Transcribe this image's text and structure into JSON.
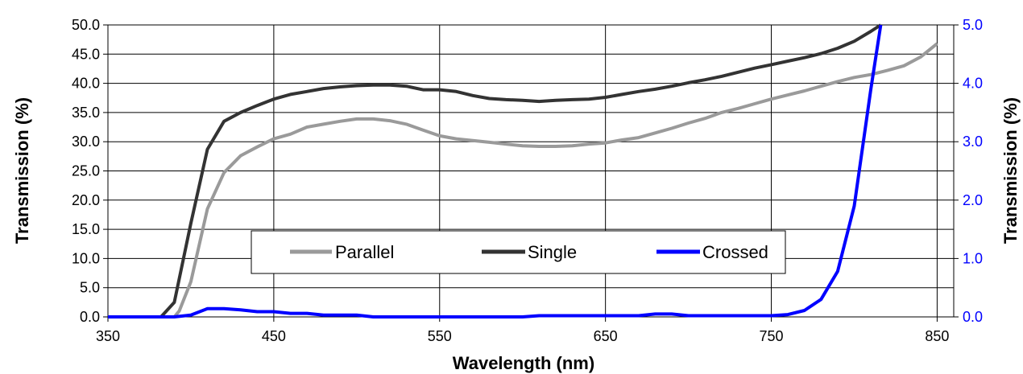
{
  "chart_data": {
    "type": "line",
    "xlabel": "Wavelength (nm)",
    "ylabel_left": "Transmission (%)",
    "ylabel_right": "Transmission (%)",
    "xlim": [
      350,
      860
    ],
    "ylim_left": [
      0,
      50
    ],
    "ylim_right": [
      0,
      5
    ],
    "x_ticks": [
      "350",
      "450",
      "550",
      "650",
      "750",
      "850"
    ],
    "y_ticks_left": [
      "0.0",
      "5.0",
      "10.0",
      "15.0",
      "20.0",
      "25.0",
      "30.0",
      "35.0",
      "40.0",
      "45.0",
      "50.0"
    ],
    "y_ticks_right": [
      "0.0",
      "1.0",
      "2.0",
      "3.0",
      "4.0",
      "5.0"
    ],
    "grid": true,
    "legend_position": "lower-center",
    "series": [
      {
        "name": "Parallel",
        "color": "#9a9a9a",
        "axis": "left",
        "x": [
          390,
          393,
          400,
          410,
          420,
          430,
          440,
          450,
          460,
          470,
          480,
          490,
          500,
          510,
          520,
          530,
          540,
          550,
          560,
          570,
          580,
          590,
          600,
          610,
          620,
          630,
          640,
          650,
          660,
          670,
          680,
          690,
          700,
          710,
          720,
          730,
          740,
          750,
          760,
          770,
          780,
          790,
          800,
          810,
          820,
          830,
          840,
          850
        ],
        "y": [
          0.0,
          1.0,
          6.0,
          18.5,
          24.7,
          27.6,
          29.1,
          30.5,
          31.3,
          32.5,
          33.0,
          33.5,
          33.9,
          33.9,
          33.6,
          33.0,
          32.0,
          31.0,
          30.5,
          30.2,
          29.9,
          29.6,
          29.3,
          29.2,
          29.2,
          29.3,
          29.6,
          29.8,
          30.3,
          30.7,
          31.5,
          32.3,
          33.2,
          34.0,
          35.0,
          35.7,
          36.5,
          37.3,
          38.0,
          38.7,
          39.5,
          40.3,
          41.0,
          41.5,
          42.2,
          43.0,
          44.5,
          46.8
        ]
      },
      {
        "name": "Single",
        "color": "#333333",
        "axis": "left",
        "x": [
          382,
          390,
          400,
          410,
          420,
          430,
          440,
          450,
          460,
          470,
          480,
          490,
          500,
          510,
          520,
          530,
          540,
          550,
          560,
          570,
          580,
          590,
          600,
          610,
          620,
          630,
          640,
          650,
          660,
          670,
          680,
          690,
          700,
          710,
          720,
          730,
          740,
          750,
          760,
          770,
          780,
          790,
          800,
          810,
          816
        ],
        "y": [
          0.0,
          2.5,
          16.0,
          28.7,
          33.5,
          35.0,
          36.2,
          37.3,
          38.1,
          38.6,
          39.1,
          39.4,
          39.6,
          39.7,
          39.7,
          39.5,
          38.9,
          38.9,
          38.6,
          37.9,
          37.4,
          37.2,
          37.1,
          36.9,
          37.1,
          37.2,
          37.3,
          37.6,
          38.1,
          38.6,
          39.0,
          39.5,
          40.1,
          40.6,
          41.2,
          41.9,
          42.6,
          43.2,
          43.8,
          44.4,
          45.1,
          46.0,
          47.2,
          48.9,
          50.0
        ]
      },
      {
        "name": "Crossed",
        "color": "#0000ff",
        "axis": "right",
        "x": [
          350,
          360,
          370,
          380,
          390,
          400,
          410,
          420,
          430,
          440,
          450,
          460,
          470,
          480,
          490,
          500,
          510,
          520,
          530,
          540,
          550,
          560,
          570,
          580,
          590,
          600,
          610,
          620,
          630,
          640,
          650,
          660,
          670,
          680,
          690,
          700,
          710,
          720,
          730,
          740,
          750,
          760,
          770,
          780,
          790,
          800,
          810,
          816
        ],
        "y": [
          0.0,
          0.0,
          0.0,
          0.0,
          0.0,
          0.03,
          0.14,
          0.14,
          0.12,
          0.09,
          0.09,
          0.06,
          0.06,
          0.03,
          0.03,
          0.03,
          0.0,
          0.0,
          0.0,
          0.0,
          0.0,
          0.0,
          0.0,
          0.0,
          0.0,
          0.0,
          0.02,
          0.02,
          0.02,
          0.02,
          0.02,
          0.02,
          0.02,
          0.05,
          0.05,
          0.02,
          0.02,
          0.02,
          0.02,
          0.02,
          0.02,
          0.04,
          0.11,
          0.3,
          0.78,
          1.9,
          3.9,
          5.0
        ]
      }
    ]
  }
}
